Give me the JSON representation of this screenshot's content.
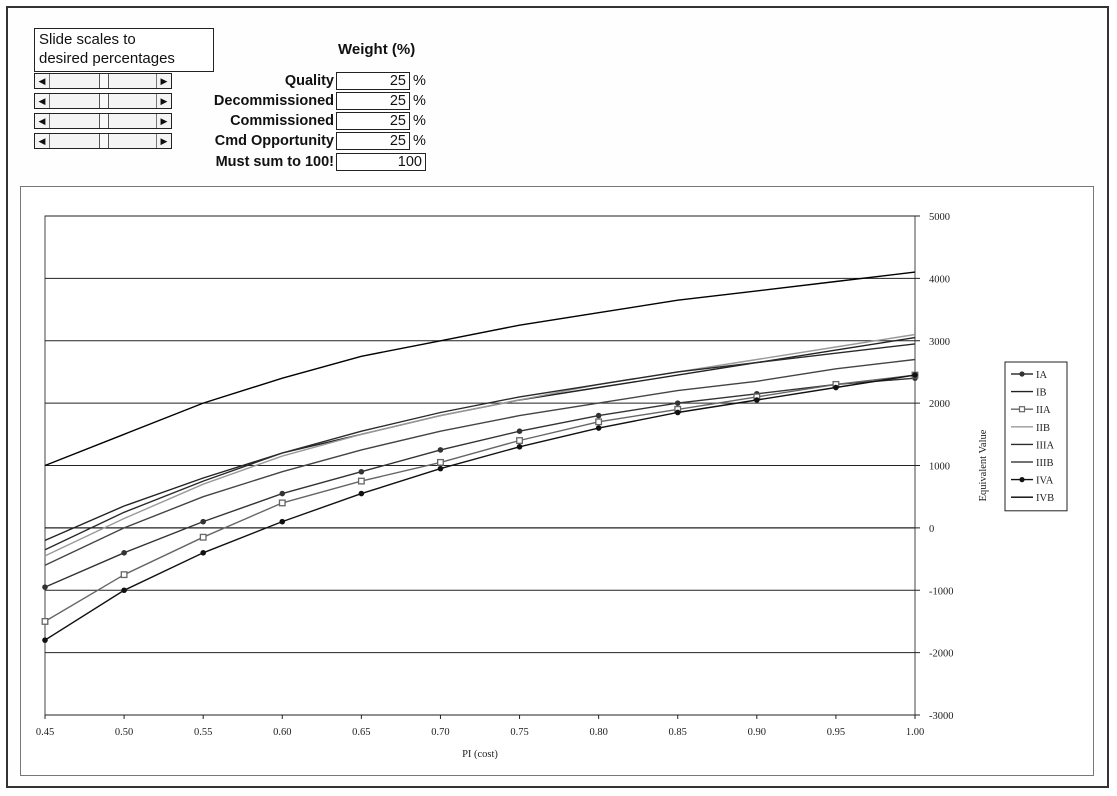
{
  "controls": {
    "hint_line1": "Slide scales to",
    "hint_line2": "desired percentages",
    "weight_title": "Weight (%)",
    "rows": [
      {
        "label": "Quality",
        "value": "25",
        "unit": "%",
        "slider": 0.5
      },
      {
        "label": "Decommissioned",
        "value": "25",
        "unit": "%",
        "slider": 0.5
      },
      {
        "label": "Commissioned",
        "value": "25",
        "unit": "%",
        "slider": 0.5
      },
      {
        "label": "Cmd Opportunity",
        "value": "25",
        "unit": "%",
        "slider": 0.5
      }
    ],
    "sum_label": "Must sum to 100!",
    "sum_value": "100"
  },
  "chart_data": {
    "type": "line",
    "title": "",
    "xlabel": "PI (cost)",
    "ylabel": "Equivalent Value",
    "xlim": [
      0.45,
      1.0
    ],
    "ylim": [
      -3000,
      5000
    ],
    "x_ticks": [
      "0.45",
      "0.50",
      "0.55",
      "0.60",
      "0.65",
      "0.70",
      "0.75",
      "0.80",
      "0.85",
      "0.90",
      "0.95",
      "1.00"
    ],
    "y_ticks": [
      "5000",
      "4000",
      "3000",
      "2000",
      "1000",
      "0",
      "-1000",
      "-2000",
      "-3000"
    ],
    "y_axis_side": "right",
    "grid": "horizontal",
    "legend": "right",
    "series": [
      {
        "name": "IA",
        "marker": "dot",
        "color": "#333333",
        "x": [
          0.45,
          0.5,
          0.55,
          0.6,
          0.65,
          0.7,
          0.75,
          0.8,
          0.85,
          0.9,
          0.95,
          1.0
        ],
        "y": [
          -950,
          -400,
          100,
          550,
          900,
          1250,
          1550,
          1800,
          2000,
          2150,
          2300,
          2400
        ]
      },
      {
        "name": "IB",
        "marker": "none",
        "color": "#222222",
        "x": [
          0.45,
          0.5,
          0.55,
          0.6,
          0.65,
          0.7,
          0.75,
          0.8,
          0.85,
          0.9,
          0.95,
          1.0
        ],
        "y": [
          -200,
          350,
          800,
          1200,
          1500,
          1800,
          2050,
          2250,
          2450,
          2650,
          2850,
          3050
        ]
      },
      {
        "name": "IIA",
        "marker": "square",
        "color": "#666666",
        "x": [
          0.45,
          0.5,
          0.55,
          0.6,
          0.65,
          0.7,
          0.75,
          0.8,
          0.85,
          0.9,
          0.95,
          1.0
        ],
        "y": [
          -1500,
          -750,
          -150,
          400,
          750,
          1050,
          1400,
          1700,
          1900,
          2100,
          2300,
          2450
        ]
      },
      {
        "name": "IIB",
        "marker": "none",
        "color": "#999999",
        "x": [
          0.45,
          0.5,
          0.55,
          0.6,
          0.65,
          0.7,
          0.75,
          0.8,
          0.85,
          0.9,
          0.95,
          1.0
        ],
        "y": [
          -450,
          150,
          700,
          1150,
          1500,
          1800,
          2050,
          2300,
          2500,
          2700,
          2900,
          3100
        ]
      },
      {
        "name": "IIIA",
        "marker": "none",
        "color": "#2a2a2a",
        "x": [
          0.45,
          0.5,
          0.55,
          0.6,
          0.65,
          0.7,
          0.75,
          0.8,
          0.85,
          0.9,
          0.95,
          1.0
        ],
        "y": [
          -350,
          250,
          750,
          1200,
          1550,
          1850,
          2100,
          2300,
          2500,
          2650,
          2800,
          2950
        ]
      },
      {
        "name": "IIIB",
        "marker": "none",
        "color": "#444444",
        "x": [
          0.45,
          0.5,
          0.55,
          0.6,
          0.65,
          0.7,
          0.75,
          0.8,
          0.85,
          0.9,
          0.95,
          1.0
        ],
        "y": [
          -600,
          0,
          500,
          900,
          1250,
          1550,
          1800,
          2000,
          2200,
          2350,
          2550,
          2700
        ]
      },
      {
        "name": "IVA",
        "marker": "dot",
        "color": "#111111",
        "x": [
          0.45,
          0.5,
          0.55,
          0.6,
          0.65,
          0.7,
          0.75,
          0.8,
          0.85,
          0.9,
          0.95,
          1.0
        ],
        "y": [
          -1800,
          -1000,
          -400,
          100,
          550,
          950,
          1300,
          1600,
          1850,
          2050,
          2250,
          2450
        ]
      },
      {
        "name": "IVB",
        "marker": "none",
        "color": "#000000",
        "x": [
          0.45,
          0.5,
          0.55,
          0.6,
          0.65,
          0.7,
          0.75,
          0.8,
          0.85,
          0.9,
          0.95,
          1.0
        ],
        "y": [
          1000,
          1500,
          2000,
          2400,
          2750,
          3000,
          3250,
          3450,
          3650,
          3800,
          3950,
          4100
        ]
      }
    ]
  }
}
